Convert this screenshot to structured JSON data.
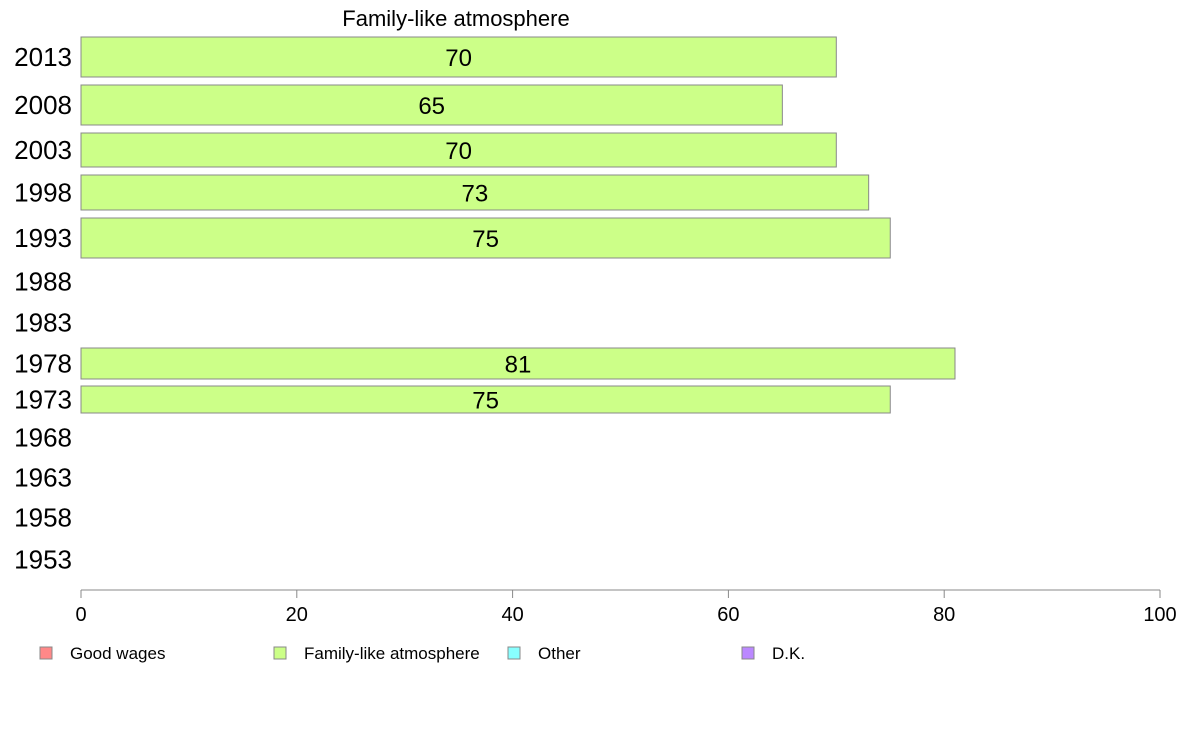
{
  "chart_data": {
    "type": "bar",
    "orientation": "horizontal",
    "title": "Family-like atmosphere",
    "categories": [
      "2013",
      "2008",
      "2003",
      "1998",
      "1993",
      "1988",
      "1983",
      "1978",
      "1973",
      "1968",
      "1963",
      "1958",
      "1953"
    ],
    "series": [
      {
        "name": "Family-like atmosphere",
        "color": "#ccff88",
        "values": [
          70,
          65,
          70,
          73,
          75,
          null,
          null,
          81,
          75,
          null,
          null,
          null,
          null
        ]
      }
    ],
    "xlim": [
      0,
      100
    ],
    "xticks": [
      0,
      20,
      40,
      60,
      80,
      100
    ],
    "grid": false,
    "legend_placement": "bottom",
    "legend": [
      {
        "label": "Good wages",
        "color": "#ff8888"
      },
      {
        "label": "Family-like atmosphere",
        "color": "#ccff88"
      },
      {
        "label": "Other",
        "color": "#88ffff"
      },
      {
        "label": "D.K.",
        "color": "#bb88ff"
      }
    ]
  }
}
